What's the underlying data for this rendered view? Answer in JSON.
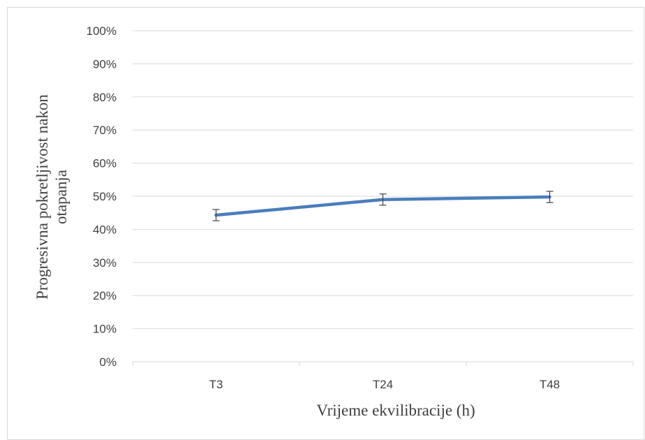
{
  "chart_data": {
    "type": "line",
    "title": "",
    "xlabel": "Vrijeme ekvilibracije (h)",
    "ylabel_lines": [
      "Progresivna pokretljivost nakon",
      "otapanja"
    ],
    "categories": [
      "T3",
      "T24",
      "T48"
    ],
    "series": [
      {
        "values": [
          0.443,
          0.49,
          0.498
        ],
        "error": [
          0.017,
          0.017,
          0.017
        ],
        "color": "#4a7ebb"
      }
    ],
    "ylim": [
      0,
      1
    ],
    "y_ticks": [
      "0%",
      "10%",
      "20%",
      "30%",
      "40%",
      "50%",
      "60%",
      "70%",
      "80%",
      "90%",
      "100%"
    ],
    "grid": true,
    "legend": "none",
    "gridline_color": "#d9d9d9",
    "error_bar_color": "#404040"
  }
}
